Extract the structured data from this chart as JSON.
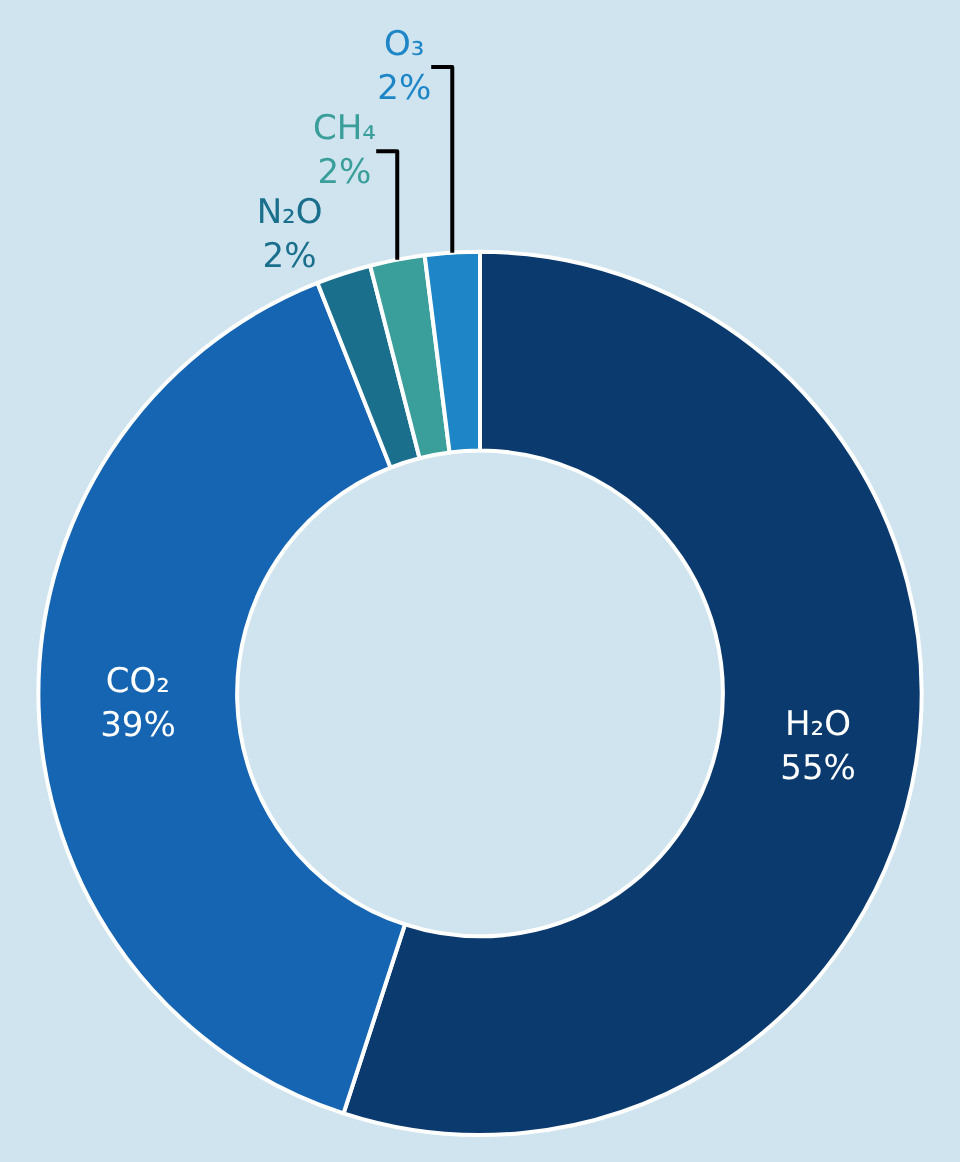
{
  "chart_data": {
    "type": "donut",
    "categories": [
      "H₂O",
      "CO₂",
      "N₂O",
      "CH₄",
      "O₃"
    ],
    "values": [
      55,
      39,
      2,
      2,
      2
    ],
    "value_labels": [
      "55%",
      "39%",
      "2%",
      "2%",
      "2%"
    ],
    "colors": [
      "#0b3a6e",
      "#1565b3",
      "#1a6f8c",
      "#3a9e9a",
      "#1e86c6"
    ],
    "legend": false
  }
}
